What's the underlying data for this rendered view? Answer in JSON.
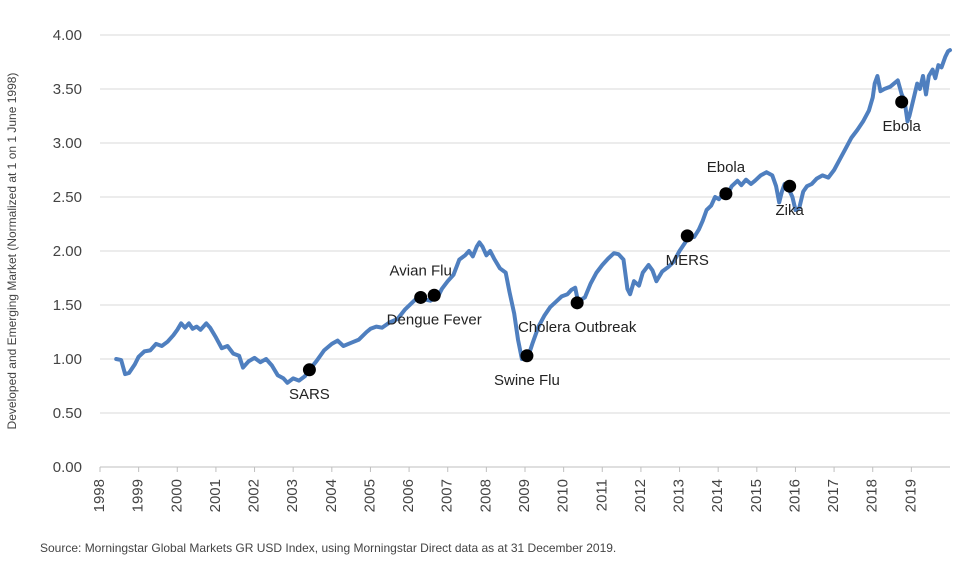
{
  "chart_data": {
    "type": "line",
    "ylabel": "Developed and Emerging Market (Normalized at 1 on 1 June 1998)",
    "xlabel": "",
    "ylim": [
      0,
      4
    ],
    "yticks": [
      "0.00",
      "0.50",
      "1.00",
      "1.50",
      "2.00",
      "2.50",
      "3.00",
      "3.50",
      "4.00"
    ],
    "xlim": [
      1998,
      2020
    ],
    "xticks": [
      "1998",
      "1999",
      "2000",
      "2001",
      "2002",
      "2003",
      "2004",
      "2005",
      "2006",
      "2007",
      "2008",
      "2009",
      "2010",
      "2011",
      "2012",
      "2013",
      "2014",
      "2015",
      "2016",
      "2017",
      "2018",
      "2019"
    ],
    "grid": "horizontal",
    "line_color": "#4f7fbf",
    "series": [
      {
        "values": [
          [
            1998.42,
            1.0
          ],
          [
            1998.55,
            0.99
          ],
          [
            1998.65,
            0.86
          ],
          [
            1998.75,
            0.87
          ],
          [
            1998.9,
            0.95
          ],
          [
            1999.0,
            1.02
          ],
          [
            1999.15,
            1.07
          ],
          [
            1999.3,
            1.08
          ],
          [
            1999.45,
            1.14
          ],
          [
            1999.6,
            1.12
          ],
          [
            1999.75,
            1.16
          ],
          [
            1999.9,
            1.22
          ],
          [
            2000.0,
            1.27
          ],
          [
            2000.1,
            1.33
          ],
          [
            2000.2,
            1.29
          ],
          [
            2000.3,
            1.33
          ],
          [
            2000.4,
            1.28
          ],
          [
            2000.5,
            1.3
          ],
          [
            2000.6,
            1.27
          ],
          [
            2000.75,
            1.33
          ],
          [
            2000.85,
            1.29
          ],
          [
            2001.0,
            1.2
          ],
          [
            2001.15,
            1.1
          ],
          [
            2001.3,
            1.12
          ],
          [
            2001.45,
            1.05
          ],
          [
            2001.6,
            1.03
          ],
          [
            2001.7,
            0.92
          ],
          [
            2001.85,
            0.98
          ],
          [
            2002.0,
            1.01
          ],
          [
            2002.15,
            0.97
          ],
          [
            2002.3,
            1.0
          ],
          [
            2002.45,
            0.94
          ],
          [
            2002.6,
            0.85
          ],
          [
            2002.75,
            0.82
          ],
          [
            2002.85,
            0.78
          ],
          [
            2003.0,
            0.82
          ],
          [
            2003.15,
            0.8
          ],
          [
            2003.3,
            0.84
          ],
          [
            2003.42,
            0.9
          ],
          [
            2003.6,
            0.98
          ],
          [
            2003.8,
            1.08
          ],
          [
            2004.0,
            1.14
          ],
          [
            2004.15,
            1.17
          ],
          [
            2004.3,
            1.12
          ],
          [
            2004.5,
            1.15
          ],
          [
            2004.7,
            1.18
          ],
          [
            2004.9,
            1.25
          ],
          [
            2005.0,
            1.28
          ],
          [
            2005.15,
            1.3
          ],
          [
            2005.3,
            1.29
          ],
          [
            2005.5,
            1.34
          ],
          [
            2005.7,
            1.37
          ],
          [
            2005.9,
            1.46
          ],
          [
            2006.1,
            1.53
          ],
          [
            2006.25,
            1.58
          ],
          [
            2006.42,
            1.55
          ],
          [
            2006.55,
            1.54
          ],
          [
            2006.75,
            1.58
          ],
          [
            2006.85,
            1.65
          ],
          [
            2007.0,
            1.72
          ],
          [
            2007.15,
            1.78
          ],
          [
            2007.3,
            1.92
          ],
          [
            2007.45,
            1.96
          ],
          [
            2007.55,
            2.0
          ],
          [
            2007.65,
            1.95
          ],
          [
            2007.75,
            2.04
          ],
          [
            2007.82,
            2.08
          ],
          [
            2007.9,
            2.04
          ],
          [
            2008.0,
            1.96
          ],
          [
            2008.1,
            2.0
          ],
          [
            2008.2,
            1.93
          ],
          [
            2008.35,
            1.84
          ],
          [
            2008.5,
            1.8
          ],
          [
            2008.6,
            1.62
          ],
          [
            2008.72,
            1.42
          ],
          [
            2008.82,
            1.18
          ],
          [
            2008.92,
            1.0
          ],
          [
            2009.08,
            1.02
          ],
          [
            2009.2,
            1.15
          ],
          [
            2009.35,
            1.3
          ],
          [
            2009.5,
            1.4
          ],
          [
            2009.65,
            1.48
          ],
          [
            2009.8,
            1.53
          ],
          [
            2009.95,
            1.58
          ],
          [
            2010.1,
            1.6
          ],
          [
            2010.2,
            1.64
          ],
          [
            2010.3,
            1.66
          ],
          [
            2010.38,
            1.52
          ],
          [
            2010.45,
            1.55
          ],
          [
            2010.55,
            1.57
          ],
          [
            2010.7,
            1.7
          ],
          [
            2010.85,
            1.8
          ],
          [
            2011.0,
            1.87
          ],
          [
            2011.15,
            1.93
          ],
          [
            2011.3,
            1.98
          ],
          [
            2011.42,
            1.97
          ],
          [
            2011.55,
            1.92
          ],
          [
            2011.65,
            1.65
          ],
          [
            2011.72,
            1.6
          ],
          [
            2011.82,
            1.72
          ],
          [
            2011.95,
            1.68
          ],
          [
            2012.05,
            1.8
          ],
          [
            2012.2,
            1.87
          ],
          [
            2012.3,
            1.82
          ],
          [
            2012.4,
            1.72
          ],
          [
            2012.55,
            1.81
          ],
          [
            2012.7,
            1.85
          ],
          [
            2012.85,
            1.9
          ],
          [
            2013.0,
            2.0
          ],
          [
            2013.15,
            2.08
          ],
          [
            2013.25,
            2.14
          ],
          [
            2013.38,
            2.13
          ],
          [
            2013.5,
            2.2
          ],
          [
            2013.6,
            2.28
          ],
          [
            2013.7,
            2.38
          ],
          [
            2013.82,
            2.42
          ],
          [
            2013.92,
            2.5
          ],
          [
            2014.02,
            2.48
          ],
          [
            2014.15,
            2.55
          ],
          [
            2014.25,
            2.53
          ],
          [
            2014.35,
            2.6
          ],
          [
            2014.5,
            2.65
          ],
          [
            2014.6,
            2.61
          ],
          [
            2014.72,
            2.66
          ],
          [
            2014.85,
            2.62
          ],
          [
            2014.95,
            2.65
          ],
          [
            2015.1,
            2.7
          ],
          [
            2015.25,
            2.73
          ],
          [
            2015.4,
            2.7
          ],
          [
            2015.5,
            2.6
          ],
          [
            2015.58,
            2.45
          ],
          [
            2015.65,
            2.55
          ],
          [
            2015.72,
            2.62
          ],
          [
            2015.82,
            2.58
          ],
          [
            2015.92,
            2.5
          ],
          [
            2016.0,
            2.38
          ],
          [
            2016.1,
            2.4
          ],
          [
            2016.2,
            2.55
          ],
          [
            2016.3,
            2.6
          ],
          [
            2016.42,
            2.62
          ],
          [
            2016.55,
            2.67
          ],
          [
            2016.7,
            2.7
          ],
          [
            2016.85,
            2.68
          ],
          [
            2017.0,
            2.75
          ],
          [
            2017.15,
            2.85
          ],
          [
            2017.3,
            2.95
          ],
          [
            2017.45,
            3.05
          ],
          [
            2017.6,
            3.12
          ],
          [
            2017.75,
            3.2
          ],
          [
            2017.9,
            3.3
          ],
          [
            2018.0,
            3.42
          ],
          [
            2018.05,
            3.55
          ],
          [
            2018.12,
            3.62
          ],
          [
            2018.2,
            3.48
          ],
          [
            2018.3,
            3.5
          ],
          [
            2018.45,
            3.52
          ],
          [
            2018.55,
            3.55
          ],
          [
            2018.65,
            3.58
          ],
          [
            2018.75,
            3.45
          ],
          [
            2018.82,
            3.4
          ],
          [
            2018.9,
            3.2
          ],
          [
            2018.95,
            3.25
          ],
          [
            2019.05,
            3.4
          ],
          [
            2019.15,
            3.55
          ],
          [
            2019.22,
            3.5
          ],
          [
            2019.3,
            3.62
          ],
          [
            2019.38,
            3.45
          ],
          [
            2019.45,
            3.62
          ],
          [
            2019.55,
            3.68
          ],
          [
            2019.62,
            3.6
          ],
          [
            2019.7,
            3.72
          ],
          [
            2019.78,
            3.7
          ],
          [
            2019.88,
            3.8
          ],
          [
            2019.95,
            3.85
          ],
          [
            2020.0,
            3.86
          ]
        ]
      }
    ],
    "annotations": [
      {
        "label": "SARS",
        "x": 2003.42,
        "y": 0.9,
        "label_pos": "below"
      },
      {
        "label": "Avian Flu",
        "x": 2006.3,
        "y": 1.57,
        "label_pos": "above"
      },
      {
        "label": "Dengue Fever",
        "x": 2006.65,
        "y": 1.59,
        "label_pos": "below"
      },
      {
        "label": "Swine Flu",
        "x": 2009.05,
        "y": 1.03,
        "label_pos": "below"
      },
      {
        "label": "Cholera Outbreak",
        "x": 2010.35,
        "y": 1.52,
        "label_pos": "below"
      },
      {
        "label": "MERS",
        "x": 2013.2,
        "y": 2.14,
        "label_pos": "below"
      },
      {
        "label": "Ebola",
        "x": 2014.2,
        "y": 2.53,
        "label_pos": "above"
      },
      {
        "label": "Zika",
        "x": 2015.85,
        "y": 2.6,
        "label_pos": "below"
      },
      {
        "label": "Ebola",
        "x": 2018.75,
        "y": 3.38,
        "label_pos": "below"
      }
    ]
  },
  "source": "Source: Morningstar Global Markets GR USD Index, using Morningstar Direct data as at 31 December 2019."
}
